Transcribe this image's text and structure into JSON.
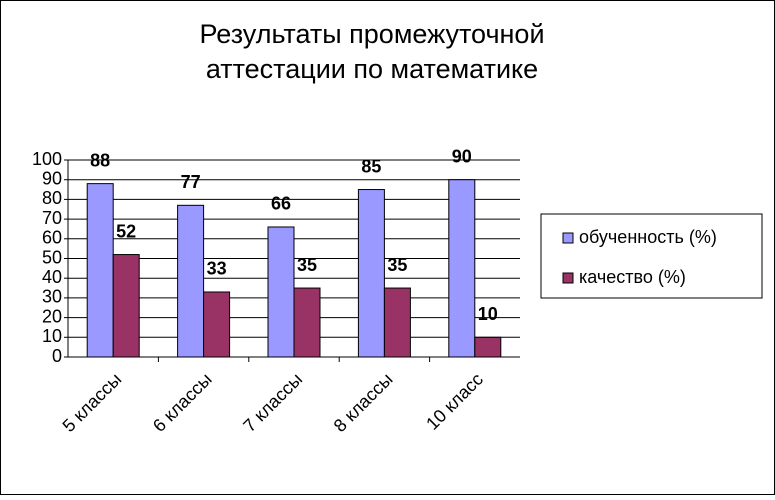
{
  "chart_data": {
    "type": "bar",
    "title": [
      "Результаты промежуточной",
      "аттестации по математике"
    ],
    "categories": [
      "5 классы",
      "6 классы",
      "7 классы",
      "8 классы",
      "10 класс"
    ],
    "series": [
      {
        "name": "обученность (%)",
        "color": "#9999ff",
        "values": [
          88,
          77,
          66,
          85,
          90
        ]
      },
      {
        "name": "качество (%)",
        "color": "#993366",
        "values": [
          52,
          33,
          35,
          35,
          10
        ]
      }
    ],
    "ylim": [
      0,
      100
    ],
    "yticks": [
      0,
      10,
      20,
      30,
      40,
      50,
      60,
      70,
      80,
      90,
      100
    ],
    "grid": true,
    "legend": "right"
  }
}
